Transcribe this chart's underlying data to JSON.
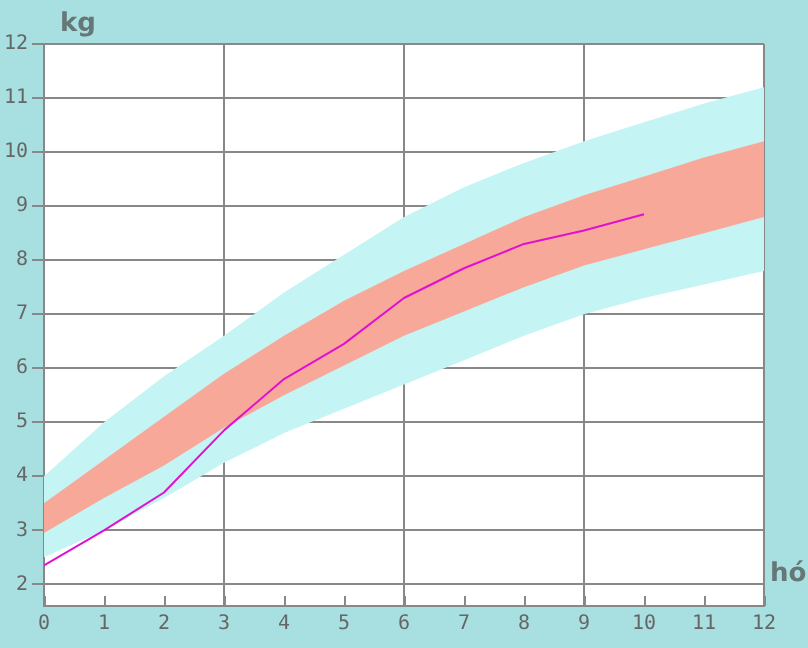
{
  "chart_data": {
    "type": "line",
    "xlabel": "hó",
    "ylabel": "kg",
    "xlim": [
      0,
      12
    ],
    "xticks": [
      0,
      1,
      2,
      3,
      4,
      5,
      6,
      7,
      8,
      9,
      10,
      11,
      12
    ],
    "ylim": [
      1.6,
      12
    ],
    "yticks": [
      2,
      3,
      4,
      5,
      6,
      7,
      8,
      9,
      10,
      11,
      12
    ],
    "grid": true,
    "series": [
      {
        "type": "line",
        "color": "#c4f4f4",
        "x": [
          0,
          1,
          2,
          3,
          4,
          5,
          6,
          7,
          8,
          9,
          10,
          11,
          12
        ],
        "values": [
          null,
          null,
          null,
          null,
          null,
          null,
          null,
          null,
          null,
          null,
          null,
          null,
          null
        ],
        "lower": [
          2.5,
          3.0,
          3.6,
          4.25,
          4.8,
          5.25,
          5.7,
          6.15,
          6.6,
          7.0,
          7.3,
          7.55,
          7.8
        ],
        "upper": [
          4.0,
          5.0,
          5.85,
          6.6,
          7.4,
          8.1,
          8.8,
          9.35,
          9.8,
          10.2,
          10.55,
          10.9,
          11.2
        ]
      },
      {
        "type": "line",
        "color": "#f8a898",
        "x": [
          0,
          1,
          2,
          3,
          4,
          5,
          6,
          7,
          8,
          9,
          10,
          11,
          12
        ],
        "values": [
          null,
          null,
          null,
          null,
          null,
          null,
          null,
          null,
          null,
          null,
          null,
          null,
          null
        ],
        "lower": [
          2.95,
          3.6,
          4.2,
          4.9,
          5.5,
          6.05,
          6.6,
          7.05,
          7.5,
          7.9,
          8.2,
          8.5,
          8.8
        ],
        "upper": [
          3.5,
          4.3,
          5.1,
          5.9,
          6.6,
          7.25,
          7.8,
          8.3,
          8.8,
          9.2,
          9.55,
          9.9,
          10.2
        ]
      },
      {
        "type": "line",
        "color": "#e010d0",
        "x": [
          0,
          1,
          2,
          3,
          4,
          5,
          6,
          7,
          8,
          9,
          10
        ],
        "values": [
          2.35,
          3.0,
          3.7,
          4.85,
          5.8,
          6.45,
          7.3,
          7.85,
          8.3,
          8.55,
          8.85
        ]
      }
    ]
  }
}
